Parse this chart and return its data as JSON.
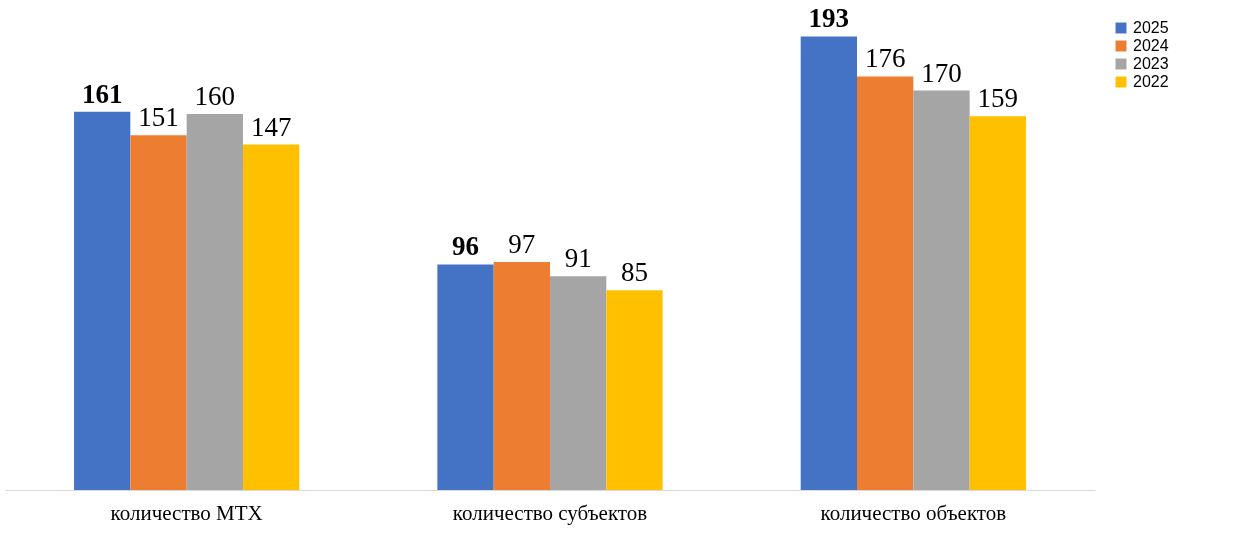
{
  "chart_data": {
    "type": "bar",
    "categories": [
      "количество МТХ",
      "количество субъектов",
      "количество объектов"
    ],
    "series": [
      {
        "name": "2025",
        "color": "#4472c4",
        "values": [
          161,
          96,
          193
        ]
      },
      {
        "name": "2024",
        "color": "#ed7d31",
        "values": [
          151,
          97,
          176
        ]
      },
      {
        "name": "2023",
        "color": "#a5a5a5",
        "values": [
          160,
          91,
          170
        ]
      },
      {
        "name": "2022",
        "color": "#ffc000",
        "values": [
          147,
          85,
          159
        ]
      }
    ],
    "data_labels": true,
    "legend": "right",
    "grid": false
  }
}
